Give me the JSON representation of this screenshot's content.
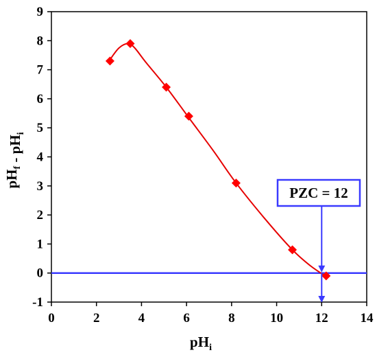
{
  "chart_data": {
    "type": "scatter",
    "xlabel": "pH",
    "xlabel_sub": "i",
    "ylabel_parts": [
      {
        "text": "pH",
        "sub": "f"
      },
      {
        "text": " - pH",
        "sub": "i"
      }
    ],
    "xlim": [
      0,
      14
    ],
    "ylim": [
      -1,
      9
    ],
    "x_ticks": [
      0,
      2,
      4,
      6,
      8,
      10,
      12,
      14
    ],
    "y_ticks": [
      -1,
      0,
      1,
      2,
      3,
      4,
      5,
      6,
      7,
      8,
      9
    ],
    "grid": false,
    "legend": "none",
    "series": [
      {
        "marker": "diamond",
        "color": "#ff0000",
        "x": [
          2.6,
          3.5,
          5.1,
          6.1,
          8.2,
          10.7,
          12.2
        ],
        "y": [
          7.3,
          7.9,
          6.4,
          5.4,
          3.1,
          0.8,
          -0.1
        ]
      }
    ],
    "fit_line": {
      "color": "#e60000",
      "x": [
        2.6,
        3.0,
        3.4,
        3.7,
        4.2,
        5.1,
        6.1,
        7.2,
        8.2,
        9.5,
        10.7,
        11.5,
        12.2
      ],
      "y": [
        7.35,
        7.75,
        7.9,
        7.75,
        7.25,
        6.4,
        5.35,
        4.2,
        3.1,
        1.85,
        0.8,
        0.25,
        -0.12
      ]
    },
    "reference_line": {
      "y": 0,
      "color": "#3a3aff"
    },
    "annotation": {
      "text": "PZC = 12",
      "x": 12,
      "color": "#3a3aff"
    }
  }
}
